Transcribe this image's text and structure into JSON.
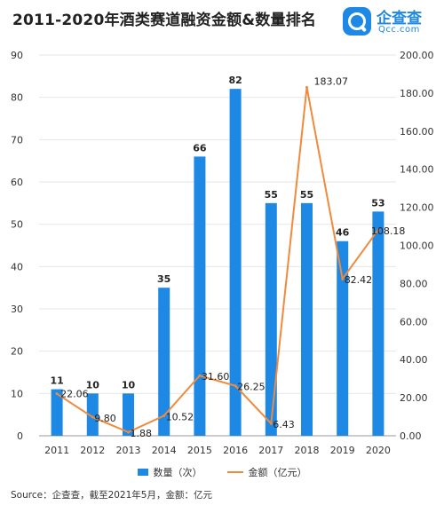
{
  "title": "2011-2020年酒类赛道融资金额&数量排名",
  "logo": {
    "cn": "企查查",
    "en": "Qcc.com"
  },
  "source": "Source：企查查，截至2021年5月，金额：亿元",
  "colors": {
    "bar": "#1e88e5",
    "line": "#f08a3c",
    "grid": "#e6e6e6"
  },
  "chart_data": {
    "type": "bar",
    "title": "2011-2020年酒类赛道融资金额&数量排名",
    "categories": [
      "2011",
      "2012",
      "2013",
      "2014",
      "2015",
      "2016",
      "2017",
      "2018",
      "2019",
      "2020"
    ],
    "series": [
      {
        "name": "数量（次）",
        "type": "bar",
        "axis": "left",
        "values": [
          11,
          10,
          10,
          35,
          66,
          82,
          55,
          55,
          46,
          53
        ],
        "labels": [
          "11",
          "10",
          "10",
          "35",
          "66",
          "82",
          "55",
          "55",
          "46",
          "53"
        ]
      },
      {
        "name": "金额（亿元）",
        "type": "line",
        "axis": "right",
        "values": [
          22.06,
          9.8,
          1.88,
          10.52,
          31.6,
          26.25,
          6.43,
          183.07,
          82.42,
          108.18
        ],
        "labels": [
          "22.06",
          "9.80",
          "1.88",
          "10.52",
          "31.60",
          "26.25",
          "6.43",
          "183.07",
          "82.42",
          "108.18"
        ]
      }
    ],
    "y_left": {
      "range": [
        0,
        90
      ],
      "ticks": [
        "0",
        "10",
        "20",
        "30",
        "40",
        "50",
        "60",
        "70",
        "80",
        "90"
      ]
    },
    "y_right": {
      "range": [
        0,
        200
      ],
      "ticks": [
        "0.00",
        "20.00",
        "40.00",
        "60.00",
        "80.00",
        "100.00",
        "120.00",
        "140.00",
        "160.00",
        "180.00",
        "200.00"
      ]
    },
    "grid": true,
    "legend_position": "bottom"
  }
}
